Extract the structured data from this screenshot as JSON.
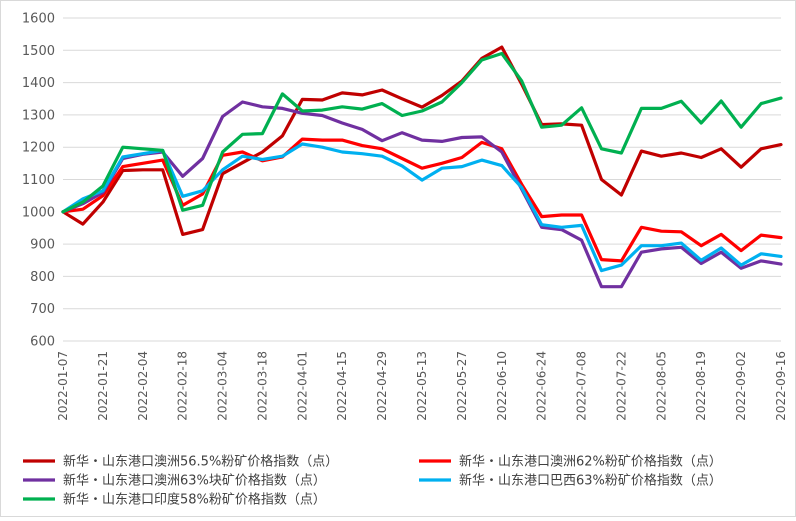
{
  "chart_data": {
    "type": "line",
    "title": "",
    "xlabel": "",
    "ylabel": "",
    "ylim": [
      600,
      1600
    ],
    "yticks": [
      600,
      700,
      800,
      900,
      1000,
      1100,
      1200,
      1300,
      1400,
      1500,
      1600
    ],
    "grid": "horizontal",
    "legend_position": "bottom",
    "x": [
      "2022-01-07",
      "2022-01-14",
      "2022-01-21",
      "2022-01-28",
      "2022-02-04",
      "2022-02-11",
      "2022-02-18",
      "2022-02-25",
      "2022-03-04",
      "2022-03-11",
      "2022-03-18",
      "2022-03-25",
      "2022-04-01",
      "2022-04-08",
      "2022-04-15",
      "2022-04-22",
      "2022-04-29",
      "2022-05-06",
      "2022-05-13",
      "2022-05-20",
      "2022-05-27",
      "2022-06-03",
      "2022-06-10",
      "2022-06-17",
      "2022-06-24",
      "2022-07-01",
      "2022-07-08",
      "2022-07-15",
      "2022-07-22",
      "2022-07-29",
      "2022-08-05",
      "2022-08-12",
      "2022-08-19",
      "2022-08-26",
      "2022-09-02",
      "2022-09-09",
      "2022-09-16"
    ],
    "xtick_labels": [
      "2022-01-07",
      "2022-01-21",
      "2022-02-04",
      "2022-02-18",
      "2022-03-04",
      "2022-03-18",
      "2022-04-01",
      "2022-04-15",
      "2022-04-29",
      "2022-05-13",
      "2022-05-27",
      "2022-06-10",
      "2022-06-24",
      "2022-07-08",
      "2022-07-22",
      "2022-08-05",
      "2022-08-19",
      "2022-09-02",
      "2022-09-16"
    ],
    "series": [
      {
        "name": "新华・山东港口澳洲56.5%粉矿价格指数（点）",
        "color": "#c00000",
        "values": [
          1000,
          962,
          1030,
          1128,
          1130,
          1130,
          930,
          945,
          1118,
          1152,
          1185,
          1235,
          1348,
          1346,
          1368,
          1362,
          1377,
          1350,
          1324,
          1360,
          1405,
          1475,
          1510,
          1395,
          1270,
          1272,
          1268,
          1100,
          1052,
          1188,
          1172,
          1182,
          1168,
          1195,
          1138,
          1195,
          1208
        ]
      },
      {
        "name": "新华・山东港口澳洲62%粉矿价格指数（点）",
        "color": "#ff0000",
        "values": [
          1000,
          1008,
          1050,
          1140,
          1150,
          1160,
          1020,
          1055,
          1175,
          1185,
          1158,
          1170,
          1225,
          1222,
          1222,
          1205,
          1195,
          1165,
          1135,
          1150,
          1168,
          1215,
          1195,
          1085,
          985,
          990,
          990,
          852,
          848,
          952,
          940,
          938,
          895,
          930,
          880,
          928,
          920
        ]
      },
      {
        "name": "新华・山东港口澳洲63%块矿价格指数（点）",
        "color": "#7030a0",
        "values": [
          1000,
          1025,
          1060,
          1165,
          1178,
          1185,
          1110,
          1165,
          1295,
          1340,
          1325,
          1320,
          1305,
          1298,
          1275,
          1255,
          1220,
          1245,
          1222,
          1218,
          1230,
          1232,
          1185,
          1070,
          952,
          945,
          912,
          768,
          768,
          875,
          885,
          890,
          840,
          875,
          825,
          848,
          838
        ]
      },
      {
        "name": "新华・山东港口巴西63%粉矿价格指数（点）",
        "color": "#00b0f0",
        "values": [
          1000,
          1040,
          1065,
          1170,
          1180,
          1190,
          1048,
          1065,
          1130,
          1172,
          1162,
          1172,
          1210,
          1200,
          1185,
          1180,
          1172,
          1142,
          1098,
          1135,
          1140,
          1160,
          1143,
          1075,
          960,
          952,
          958,
          818,
          835,
          895,
          895,
          903,
          850,
          888,
          835,
          870,
          862
        ]
      },
      {
        "name": "新华・山东港口印度58%粉矿价格指数（点）",
        "color": "#00b050",
        "values": [
          1000,
          1030,
          1080,
          1200,
          1195,
          1190,
          1005,
          1020,
          1185,
          1240,
          1242,
          1365,
          1312,
          1315,
          1325,
          1318,
          1335,
          1298,
          1312,
          1340,
          1400,
          1470,
          1490,
          1405,
          1262,
          1268,
          1322,
          1195,
          1182,
          1320,
          1320,
          1342,
          1275,
          1343,
          1262,
          1335,
          1352
        ]
      }
    ]
  }
}
